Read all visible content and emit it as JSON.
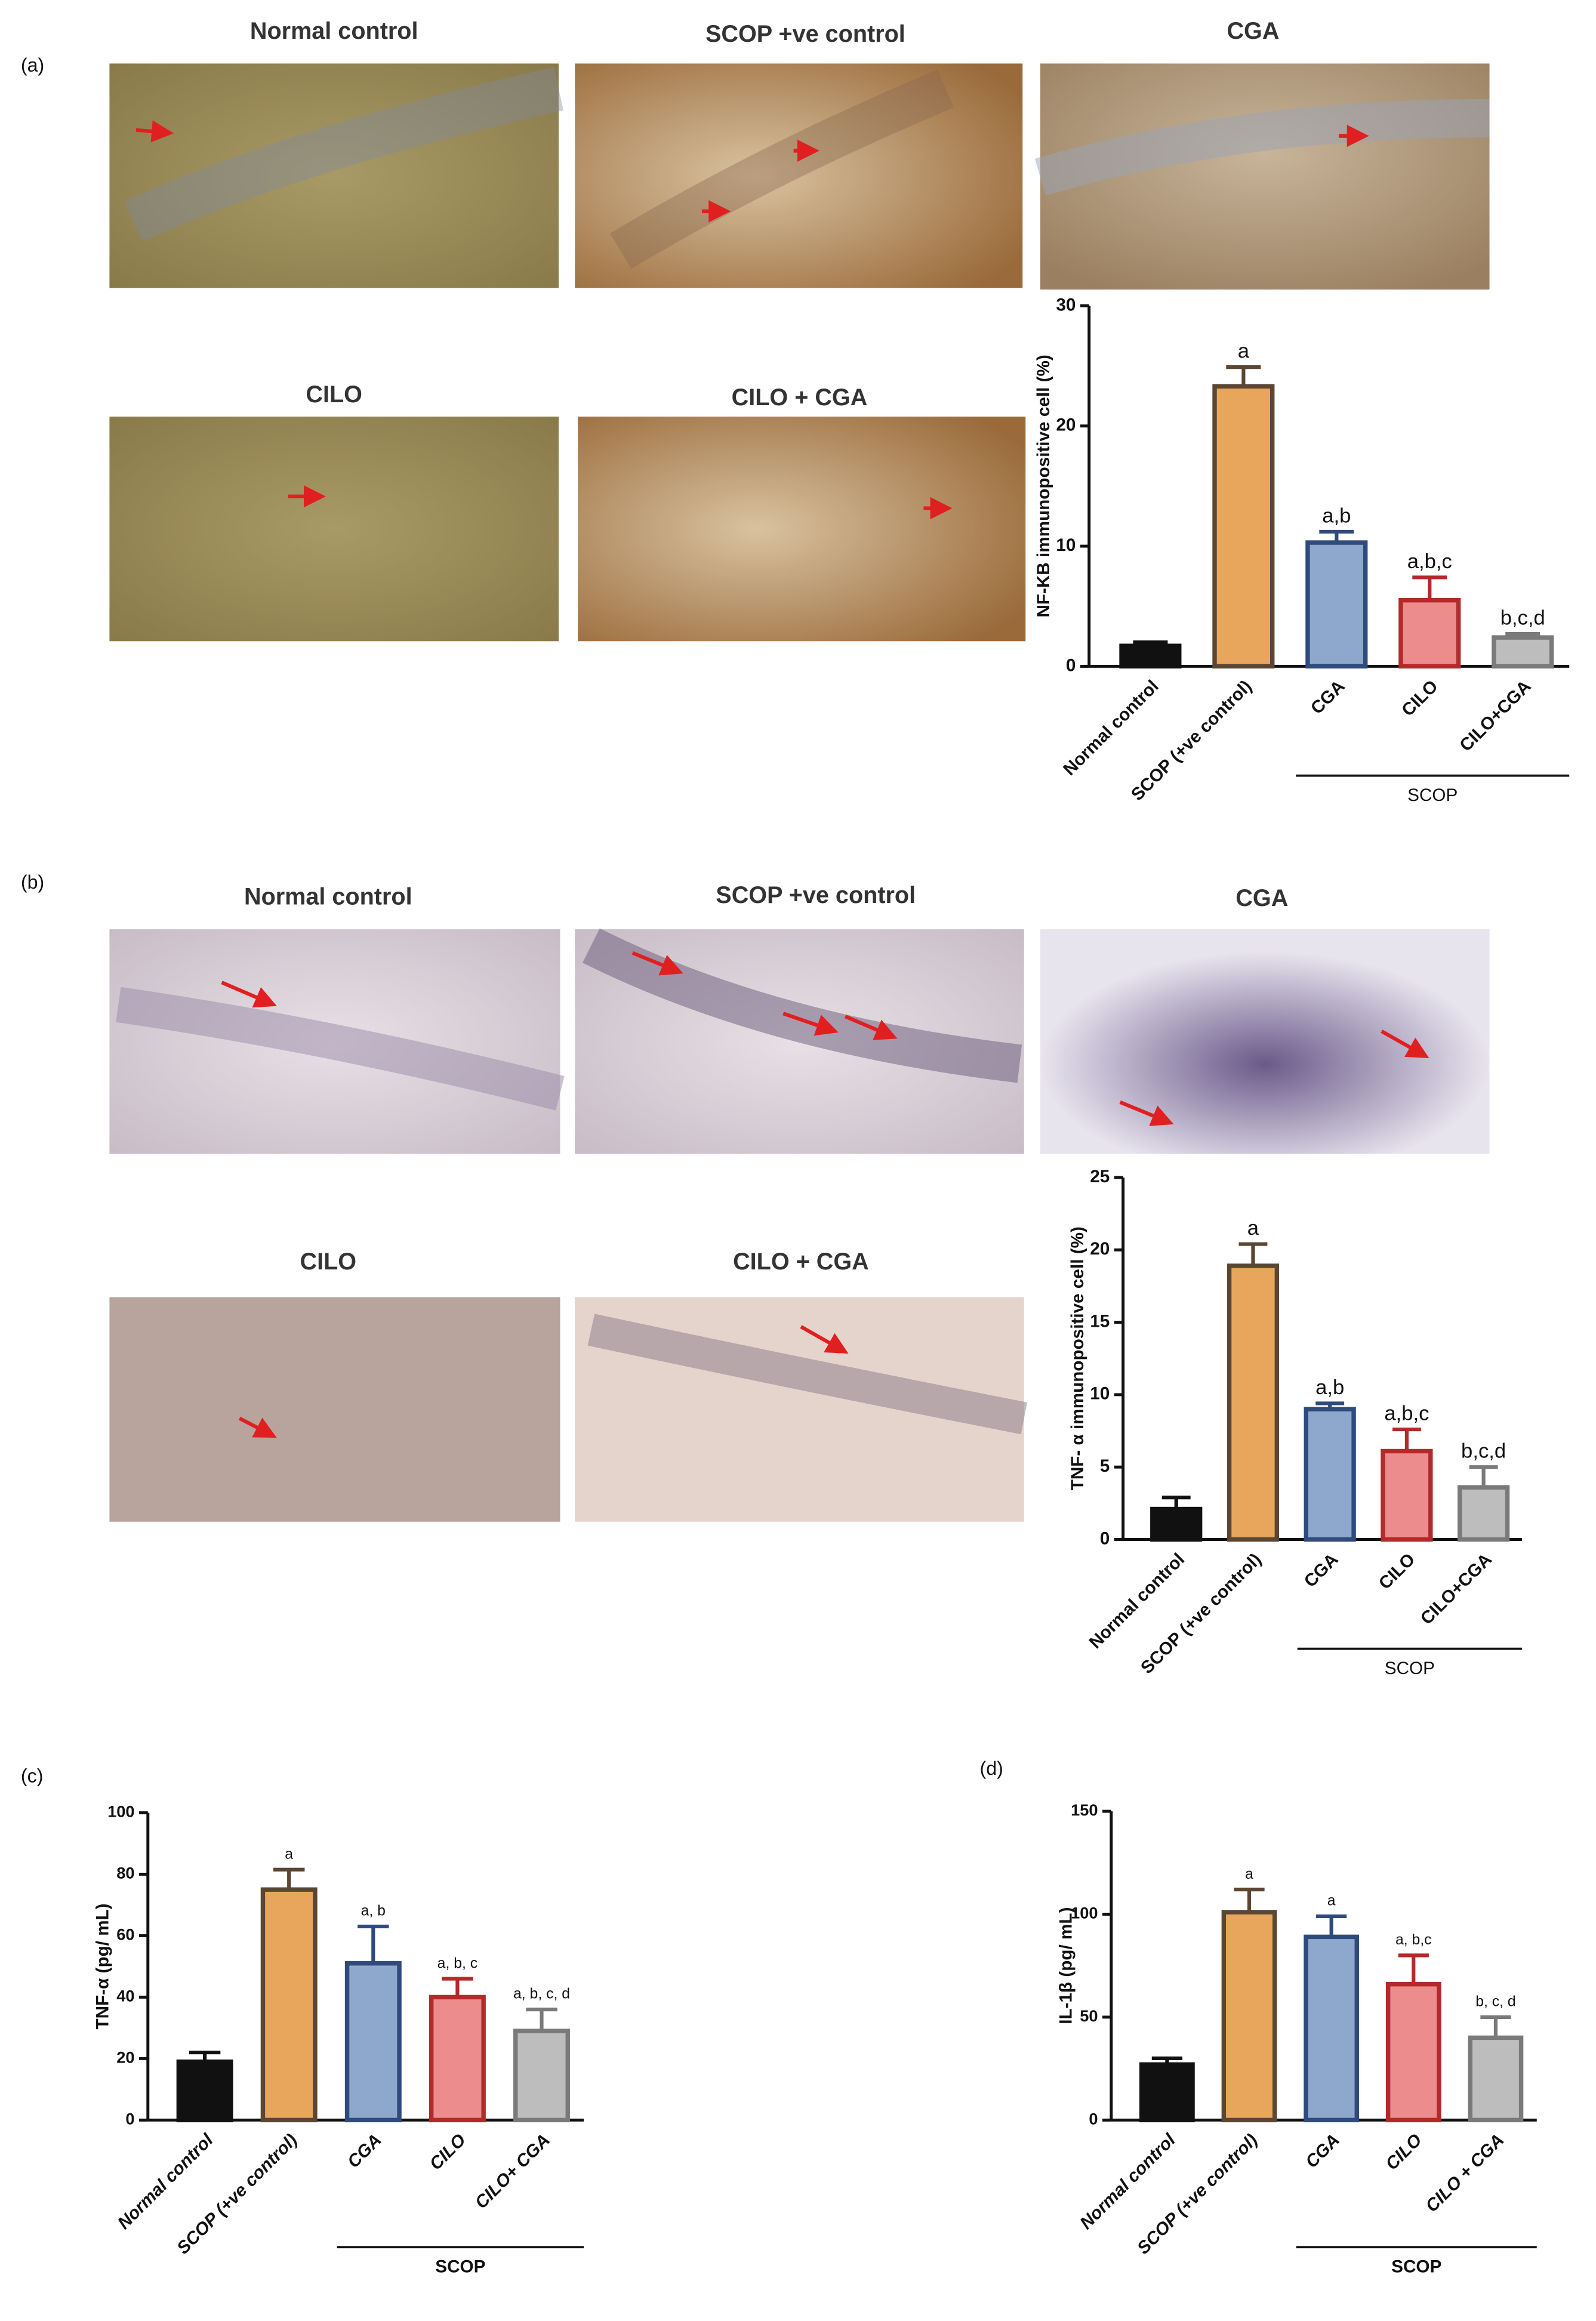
{
  "panels": [
    {
      "label": "(a)",
      "images": [
        "Normal control",
        "SCOP +ve control",
        "CGA",
        "CILO",
        "CILO + CGA"
      ]
    },
    {
      "label": "(b)",
      "images": [
        "Normal control",
        "SCOP +ve control",
        "CGA",
        "CILO",
        "CILO + CGA"
      ]
    },
    {
      "label": "(c)"
    },
    {
      "label": "(d)"
    }
  ],
  "chart_data": [
    {
      "type": "bar",
      "y_label": "NF-KB immunopositive cell (%)",
      "categories": [
        "Normal control",
        "SCOP (+ve control)",
        "CGA",
        "CILO",
        "CILO+CGA"
      ],
      "values": [
        1.7,
        23.3,
        10.3,
        5.5,
        2.4
      ],
      "errors": [
        0.3,
        1.6,
        0.9,
        1.9,
        0.3
      ],
      "significance": [
        null,
        "a",
        "a,b",
        "a,b,c",
        "b,c,d"
      ],
      "colors": [
        "#111111",
        "#e8a65c",
        "#8ea7cc",
        "#ec8c8c",
        "#bdbdbd"
      ],
      "edge_colors": [
        "#111111",
        "#5a4632",
        "#2f4b7c",
        "#b22a2a",
        "#7a7a7a"
      ],
      "group_label": "SCOP",
      "ylim": [
        0,
        30
      ],
      "yticks": [
        0,
        10,
        20,
        30
      ],
      "italic_categories": false
    },
    {
      "type": "bar",
      "y_label": "TNF- α immunopositive cell (%)",
      "categories": [
        "Normal control",
        "SCOP (+ve control)",
        "CGA",
        "CILO",
        "CILO+CGA"
      ],
      "values": [
        2.1,
        18.9,
        9.0,
        6.1,
        3.6
      ],
      "errors": [
        0.8,
        1.5,
        0.4,
        1.5,
        1.4
      ],
      "significance": [
        null,
        "a",
        "a,b",
        "a,b,c",
        "b,c,d"
      ],
      "colors": [
        "#111111",
        "#e8a65c",
        "#8ea7cc",
        "#ec8c8c",
        "#bdbdbd"
      ],
      "edge_colors": [
        "#111111",
        "#5a4632",
        "#2f4b7c",
        "#b22a2a",
        "#7a7a7a"
      ],
      "group_label": "SCOP",
      "ylim": [
        0,
        25
      ],
      "yticks": [
        0,
        5,
        10,
        15,
        20,
        25
      ],
      "italic_categories": false
    },
    {
      "type": "bar",
      "y_label": "TNF-α (pg/ mL)",
      "categories": [
        "Normal control",
        "SCOP (+ve control)",
        "CGA",
        "CILO",
        "CILO+ CGA"
      ],
      "values": [
        19,
        75,
        51,
        40,
        29
      ],
      "errors": [
        3,
        6.5,
        12,
        6,
        7
      ],
      "significance": [
        null,
        "a",
        "a, b",
        "a, b, c",
        "a, b, c, d"
      ],
      "colors": [
        "#111111",
        "#e8a65c",
        "#8ea7cc",
        "#ec8c8c",
        "#bdbdbd"
      ],
      "edge_colors": [
        "#111111",
        "#5a4632",
        "#2f4b7c",
        "#b22a2a",
        "#7a7a7a"
      ],
      "group_label": "SCOP",
      "ylim": [
        0,
        100
      ],
      "yticks": [
        0,
        20,
        40,
        60,
        80,
        100
      ],
      "italic_categories": true
    },
    {
      "type": "bar",
      "y_label": "IL-1β (pg/ mL)",
      "categories": [
        "Normal control",
        "SCOP (+ve control)",
        "CGA",
        "CILO",
        "CILO + CGA"
      ],
      "values": [
        27,
        101,
        89,
        66,
        40
      ],
      "errors": [
        3,
        11,
        10,
        14,
        10
      ],
      "significance": [
        null,
        "a",
        "a",
        "a, b,c",
        "b, c, d"
      ],
      "colors": [
        "#111111",
        "#e8a65c",
        "#8ea7cc",
        "#ec8c8c",
        "#bdbdbd"
      ],
      "edge_colors": [
        "#111111",
        "#5a4632",
        "#2f4b7c",
        "#b22a2a",
        "#7a7a7a"
      ],
      "group_label": "SCOP",
      "ylim": [
        0,
        150
      ],
      "yticks": [
        0,
        50,
        100,
        150
      ],
      "italic_categories": true
    }
  ]
}
